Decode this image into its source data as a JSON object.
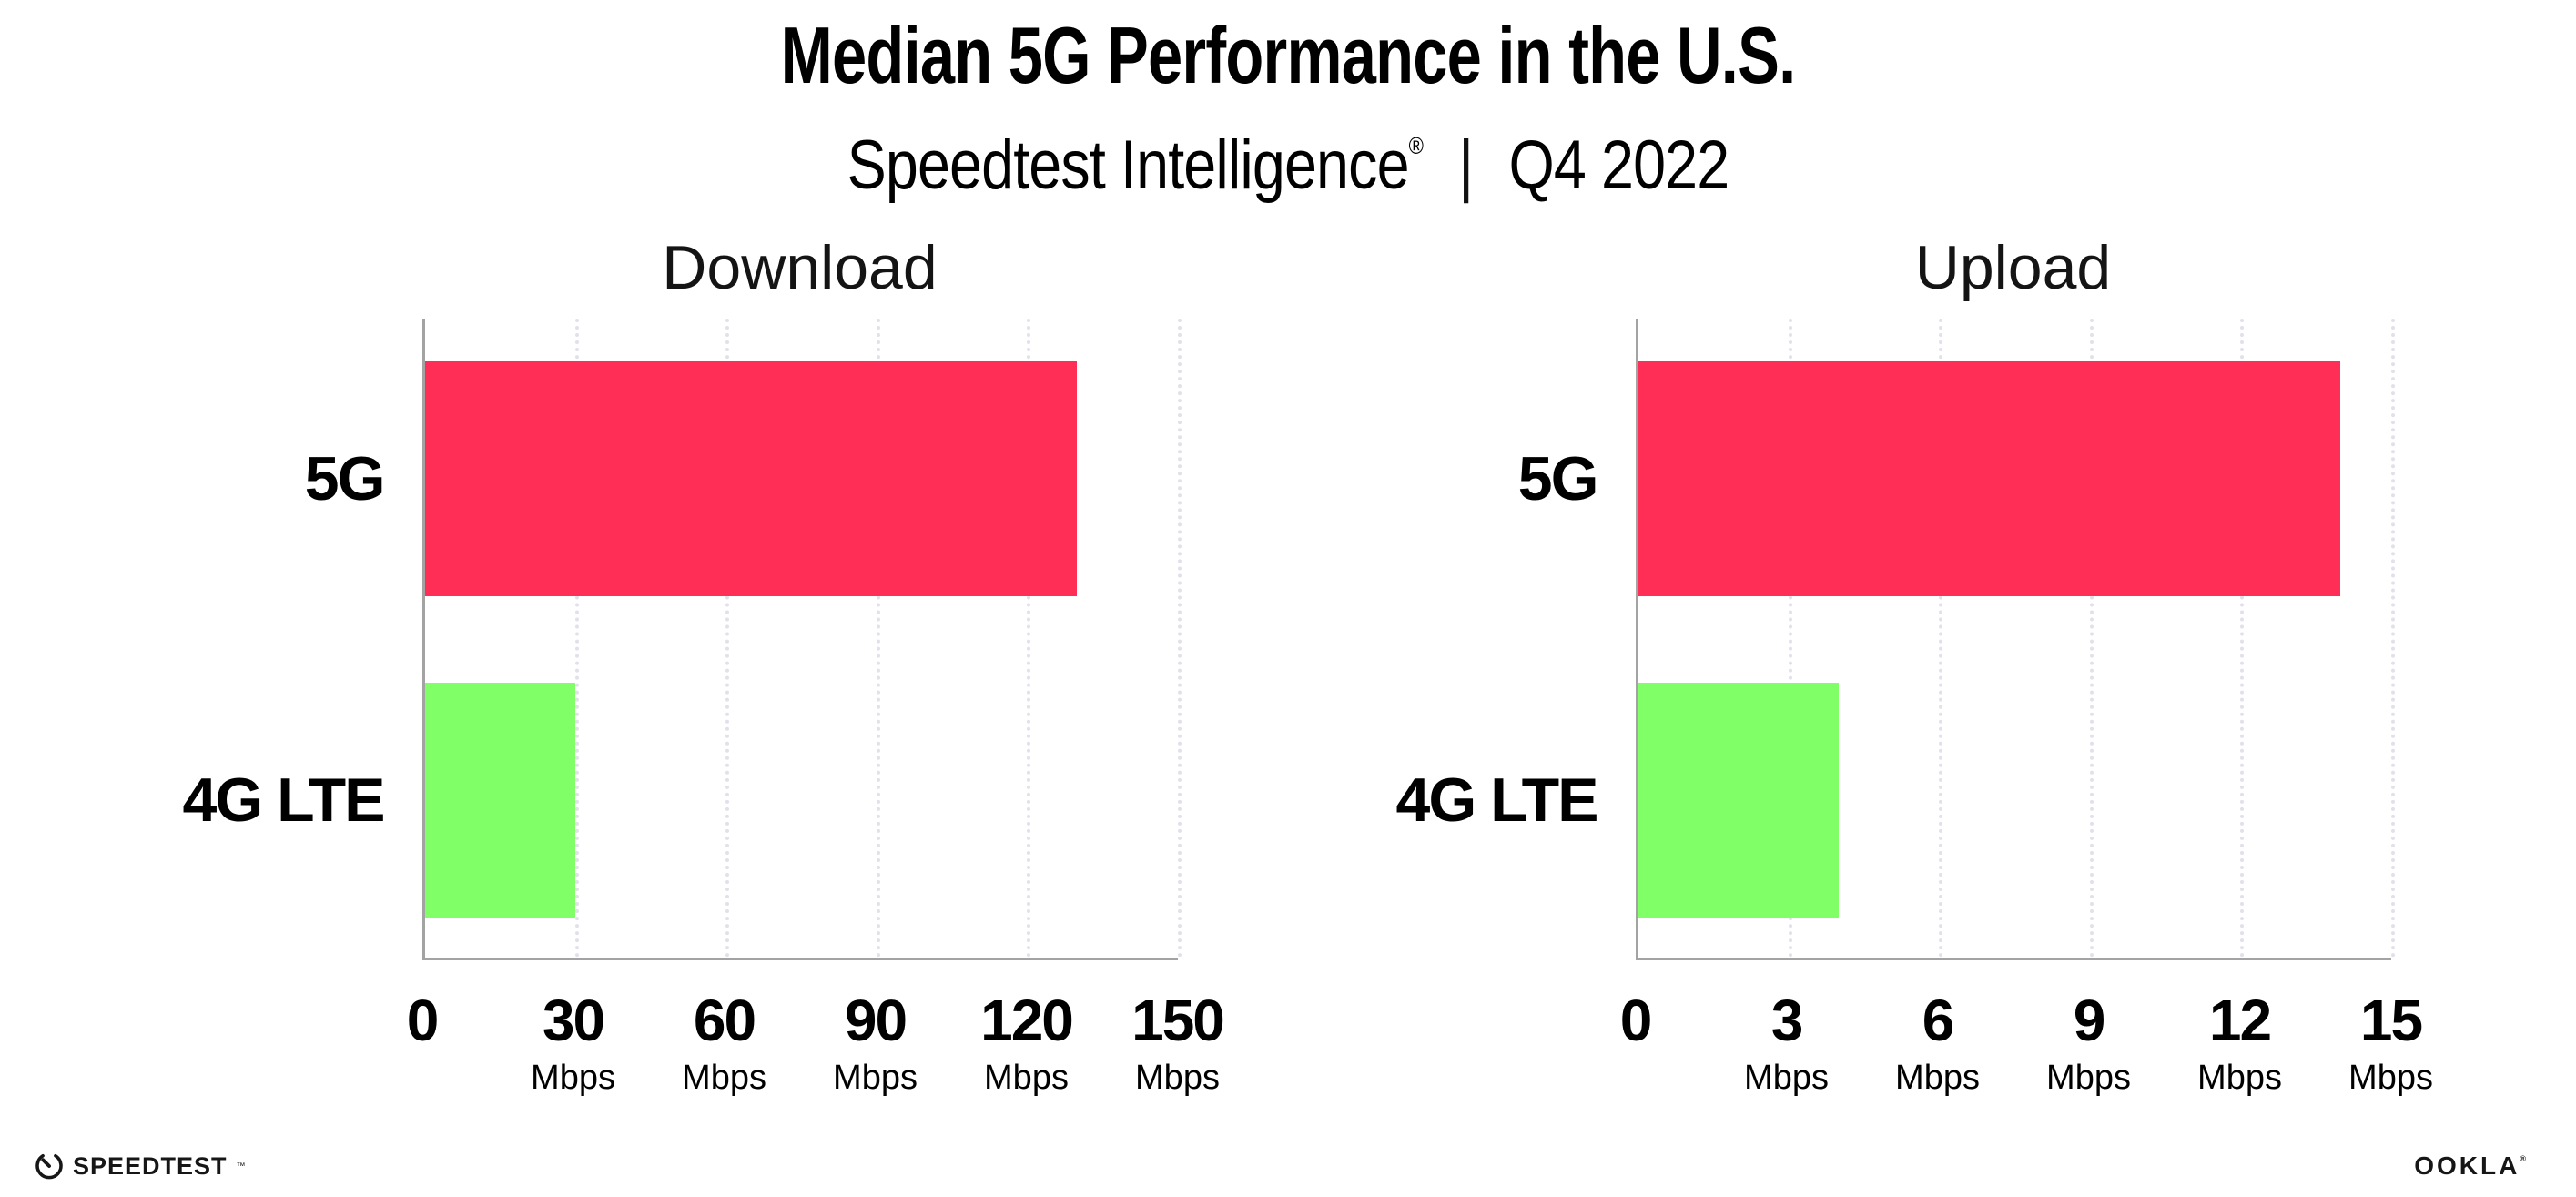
{
  "header": {
    "title": "Median 5G Performance in the U.S.",
    "subtitle_brand": "Speedtest Intelligence",
    "subtitle_reg": "®",
    "subtitle_sep": "|",
    "subtitle_period": "Q4 2022"
  },
  "charts": [
    {
      "title": "Download",
      "rows": [
        {
          "label": "5G"
        },
        {
          "label": "4G LTE"
        }
      ],
      "ticks": [
        {
          "v": "0",
          "u": ""
        },
        {
          "v": "30",
          "u": "Mbps"
        },
        {
          "v": "60",
          "u": "Mbps"
        },
        {
          "v": "90",
          "u": "Mbps"
        },
        {
          "v": "120",
          "u": "Mbps"
        },
        {
          "v": "150",
          "u": "Mbps"
        }
      ]
    },
    {
      "title": "Upload",
      "rows": [
        {
          "label": "5G"
        },
        {
          "label": "4G LTE"
        }
      ],
      "ticks": [
        {
          "v": "0",
          "u": ""
        },
        {
          "v": "3",
          "u": "Mbps"
        },
        {
          "v": "6",
          "u": "Mbps"
        },
        {
          "v": "9",
          "u": "Mbps"
        },
        {
          "v": "12",
          "u": "Mbps"
        },
        {
          "v": "15",
          "u": "Mbps"
        }
      ]
    }
  ],
  "chart_data": [
    {
      "type": "bar",
      "orientation": "horizontal",
      "title": "Download",
      "categories": [
        "5G",
        "4G LTE"
      ],
      "values": [
        130,
        30
      ],
      "unit": "Mbps",
      "xlim": [
        0,
        150
      ],
      "xticks": [
        0,
        30,
        60,
        90,
        120,
        150
      ],
      "bar_colors": [
        "#ff2e56",
        "#80ff66"
      ],
      "grid": "dotted-vertical",
      "legend": "none"
    },
    {
      "type": "bar",
      "orientation": "horizontal",
      "title": "Upload",
      "categories": [
        "5G",
        "4G LTE"
      ],
      "values": [
        14,
        4
      ],
      "unit": "Mbps",
      "xlim": [
        0,
        15
      ],
      "xticks": [
        0,
        3,
        6,
        9,
        12,
        15
      ],
      "bar_colors": [
        "#ff2e56",
        "#80ff66"
      ],
      "grid": "dotted-vertical",
      "legend": "none"
    }
  ],
  "footer": {
    "speedtest_label": "SPEEDTEST",
    "speedtest_tm": "™",
    "ookla_label": "OOKLA",
    "ookla_reg": "®"
  },
  "colors": {
    "bar_5g": "#ff2e56",
    "bar_4g_lte": "#80ff66",
    "gridline": "#e1e1eb",
    "axis": "#a3a3a3",
    "text": "#000000"
  }
}
